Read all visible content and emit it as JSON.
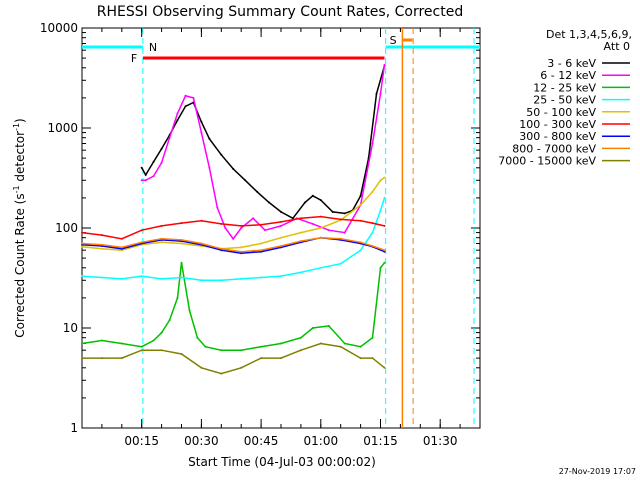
{
  "chart_data": {
    "type": "line",
    "title": "RHESSI Observing Summary Count Rates, Corrected",
    "xlabel": "Start Time (04-Jul-03 00:00:02)",
    "ylabel": "Corrected Count Rate (s",
    "ylabel_sup": "-1",
    "ylabel_mid": " detector",
    "ylabel_end": ")",
    "yscale": "log",
    "ylim": [
      1,
      10000
    ],
    "xlim_min": [
      0,
      100
    ],
    "ytick_labels": [
      "1",
      "10",
      "100",
      "1000",
      "10000"
    ],
    "xtick_labels": [
      "00:15",
      "00:30",
      "00:45",
      "01:00",
      "01:15",
      "01:30"
    ],
    "xtick_values_min": [
      15,
      30,
      45,
      60,
      75,
      90
    ],
    "legend_header": [
      "Det 1,3,4,5,6,9,",
      "Att 0"
    ],
    "legend_position": "right",
    "flag_labels": {
      "night": "N",
      "flare": "F",
      "saa": "S"
    },
    "timestamp": "27-Nov-2019 17:07",
    "series": [
      {
        "name": "3 - 6 keV",
        "color": "#000000",
        "x": [
          15,
          16,
          18,
          20,
          22,
          24,
          26,
          28,
          30,
          32,
          35,
          38,
          41,
          44,
          47,
          50,
          53,
          56,
          58,
          60,
          63,
          66,
          68,
          70,
          72,
          74,
          76
        ],
        "y": [
          400,
          340,
          460,
          620,
          850,
          1200,
          1650,
          1800,
          1150,
          780,
          540,
          390,
          300,
          230,
          180,
          145,
          125,
          180,
          210,
          190,
          145,
          140,
          150,
          210,
          500,
          2200,
          4200
        ]
      },
      {
        "name": "6 - 12 keV",
        "color": "#ff00ff",
        "x": [
          15,
          16,
          18,
          20,
          22,
          24,
          26,
          28,
          30,
          32,
          34,
          36,
          38,
          40,
          43,
          46,
          50,
          54,
          58,
          62,
          66,
          70,
          73,
          75,
          76
        ],
        "y": [
          300,
          300,
          330,
          450,
          800,
          1400,
          2100,
          2000,
          900,
          400,
          160,
          100,
          78,
          100,
          125,
          95,
          105,
          125,
          110,
          95,
          90,
          170,
          700,
          2200,
          4300
        ]
      },
      {
        "name": "12 - 25 keV",
        "color": "#00c000",
        "x": [
          0,
          5,
          10,
          15,
          18,
          20,
          22,
          24,
          25,
          27,
          29,
          31,
          35,
          40,
          45,
          50,
          55,
          58,
          62,
          66,
          70,
          73,
          75,
          76
        ],
        "y": [
          7,
          7.5,
          7,
          6.5,
          7.5,
          9,
          12,
          20,
          45,
          15,
          8,
          6.5,
          6,
          6,
          6.5,
          7,
          8,
          10,
          10.5,
          7,
          6.5,
          8,
          40,
          45
        ]
      },
      {
        "name": "25 - 50 keV",
        "color": "#00ffff",
        "x": [
          0,
          5,
          10,
          15,
          20,
          25,
          30,
          35,
          40,
          45,
          50,
          55,
          60,
          65,
          70,
          73,
          75,
          76
        ],
        "y": [
          33,
          32,
          31,
          33,
          31,
          32,
          30,
          30,
          31,
          32,
          33,
          36,
          40,
          44,
          60,
          90,
          150,
          200
        ]
      },
      {
        "name": "50 - 100 keV",
        "color": "#e0c000",
        "x": [
          0,
          5,
          10,
          15,
          20,
          25,
          30,
          35,
          40,
          45,
          50,
          55,
          60,
          65,
          70,
          73,
          75,
          76
        ],
        "y": [
          65,
          62,
          60,
          68,
          72,
          70,
          66,
          62,
          64,
          70,
          80,
          90,
          100,
          120,
          170,
          230,
          300,
          320
        ]
      },
      {
        "name": "100 - 300 keV",
        "color": "#ff0000",
        "x": [
          0,
          5,
          10,
          15,
          20,
          25,
          30,
          35,
          40,
          45,
          50,
          55,
          60,
          65,
          70,
          73,
          76
        ],
        "y": [
          90,
          85,
          78,
          95,
          105,
          112,
          118,
          110,
          105,
          108,
          115,
          125,
          130,
          122,
          118,
          112,
          105
        ]
      },
      {
        "name": "300 - 800 keV",
        "color": "#0000ff",
        "x": [
          0,
          5,
          10,
          15,
          20,
          25,
          30,
          35,
          40,
          45,
          50,
          55,
          60,
          65,
          70,
          73,
          76
        ],
        "y": [
          68,
          66,
          62,
          70,
          76,
          74,
          68,
          60,
          56,
          58,
          64,
          72,
          80,
          76,
          70,
          65,
          58
        ]
      },
      {
        "name": "800 - 7000 keV",
        "color": "#ff8000",
        "x": [
          0,
          5,
          10,
          15,
          20,
          25,
          30,
          35,
          40,
          45,
          50,
          55,
          60,
          65,
          70,
          73,
          76
        ],
        "y": [
          70,
          68,
          64,
          72,
          78,
          76,
          70,
          62,
          58,
          60,
          66,
          74,
          80,
          78,
          72,
          66,
          60
        ]
      },
      {
        "name": "7000 - 15000 keV",
        "color": "#808000",
        "x": [
          0,
          5,
          10,
          15,
          20,
          25,
          30,
          35,
          40,
          45,
          50,
          55,
          60,
          65,
          70,
          73,
          76
        ],
        "y": [
          5,
          5,
          5,
          6,
          6,
          5.5,
          4,
          3.5,
          4,
          5,
          5,
          6,
          7,
          6.5,
          5,
          5,
          4
        ]
      }
    ]
  }
}
